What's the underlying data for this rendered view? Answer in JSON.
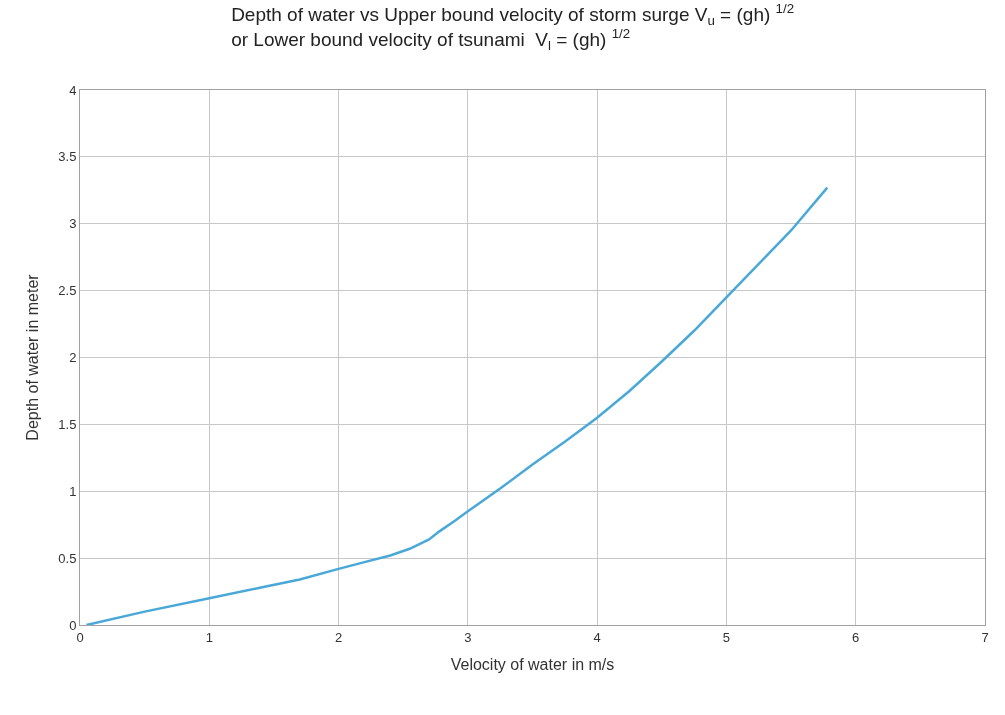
{
  "chart_data": {
    "type": "line",
    "title": "Depth of water vs Upper bound velocity of storm surge V$_{u}$ = (gh) $^{1/2}$\nor Lower bound velocity of tsunami  V$_{l}$ = (gh) $^{1/2}$",
    "xlabel": "Velocity of water in m/s",
    "ylabel": "Depth of water in meter",
    "series": [
      {
        "color": "#4aa8d8",
        "x": [
          0.05,
          0.5,
          1,
          1.4,
          1.7,
          2,
          2.2,
          2.4,
          2.55,
          2.7,
          2.78,
          2.9,
          3,
          3.25,
          3.5,
          3.75,
          4,
          4.25,
          4.5,
          4.75,
          5,
          5.25,
          5.5,
          5.78
        ],
        "values": [
          0,
          0.1,
          0.2,
          0.28,
          0.34,
          0.42,
          0.47,
          0.52,
          0.57,
          0.64,
          0.7,
          0.78,
          0.85,
          1.02,
          1.2,
          1.37,
          1.55,
          1.75,
          1.97,
          2.2,
          2.45,
          2.7,
          2.95,
          3.27
        ]
      }
    ],
    "xlim": [
      0,
      7
    ],
    "xticks": [
      0,
      1,
      2,
      3,
      4,
      5,
      6,
      7
    ],
    "ylim": [
      0,
      4
    ],
    "yticks": [
      0,
      0.5,
      1,
      1.5,
      2,
      2.5,
      3,
      3.5,
      4
    ],
    "grid": true,
    "marker": "none",
    "line_style": "solid"
  }
}
